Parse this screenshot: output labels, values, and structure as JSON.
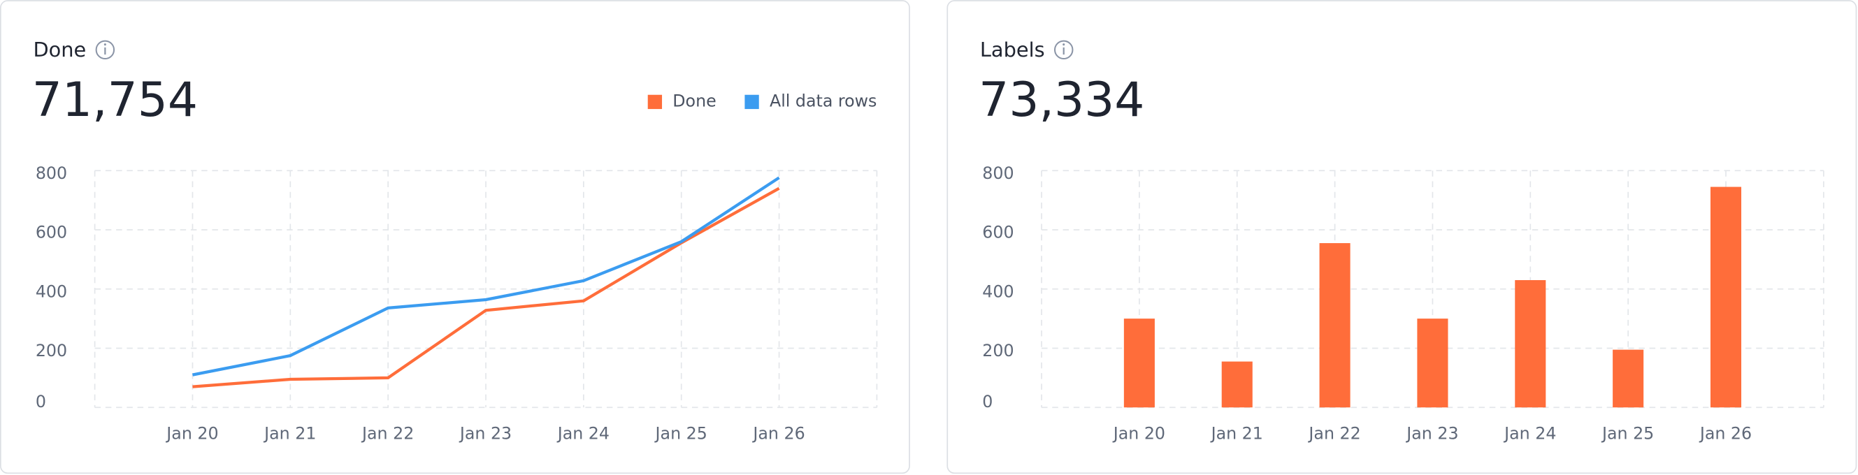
{
  "chart_data": [
    {
      "type": "line",
      "title": "Done",
      "total": "71,754",
      "categories": [
        "Jan 20",
        "Jan 21",
        "Jan 22",
        "Jan 23",
        "Jan 24",
        "Jan 25",
        "Jan 26"
      ],
      "series": [
        {
          "name": "Done",
          "color": "#ff6d3a",
          "values": [
            70,
            95,
            100,
            328,
            360,
            556,
            740
          ]
        },
        {
          "name": "All data rows",
          "color": "#3b9cf0",
          "values": [
            110,
            175,
            336,
            364,
            428,
            560,
            776
          ]
        }
      ],
      "ylim": [
        0,
        800
      ],
      "yticks": [
        0,
        200,
        400,
        600,
        800
      ],
      "grid": true,
      "legend": "top-right"
    },
    {
      "type": "bar",
      "title": "Labels",
      "total": "73,334",
      "categories": [
        "Jan 20",
        "Jan 21",
        "Jan 22",
        "Jan 23",
        "Jan 24",
        "Jan 25",
        "Jan 26"
      ],
      "values": [
        300,
        155,
        555,
        300,
        430,
        195,
        745
      ],
      "color": "#ff6d3a",
      "ylim": [
        0,
        800
      ],
      "yticks": [
        0,
        200,
        400,
        600,
        800
      ],
      "grid": true
    }
  ]
}
